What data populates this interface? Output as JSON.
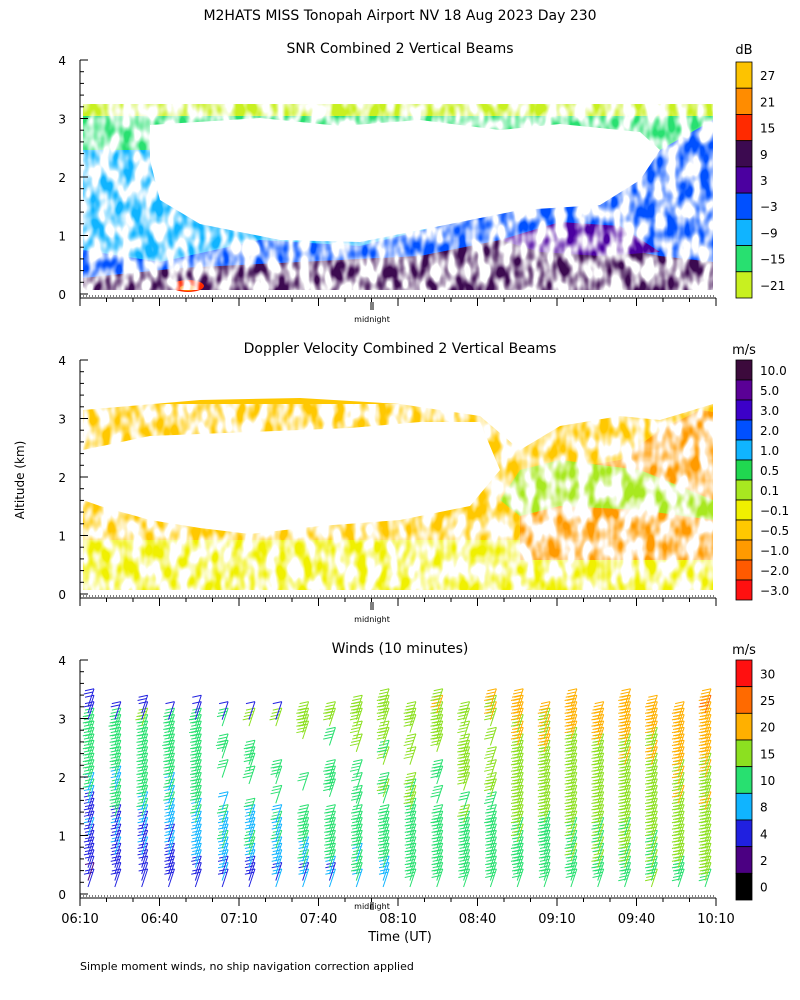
{
  "main_title": "M2HATS MISS Tonopah Airport NV  18 Aug 2023 Day 230",
  "y_axis_label": "Altitude (km)",
  "x_axis_label": "Time (UT)",
  "midnight_label": "midnight",
  "footnote": "Simple moment winds, no ship navigation correction applied",
  "chart_data": [
    {
      "type": "heatmap",
      "title": "SNR Combined 2 Vertical Beams",
      "unit": "dB",
      "ylim": [
        0,
        4
      ],
      "y_ticks": [
        "0",
        "1",
        "2",
        "3",
        "4"
      ],
      "colorbar": {
        "labels": [
          "27",
          "21",
          "15",
          "9",
          "3",
          "−3",
          "−9",
          "−15",
          "−21"
        ],
        "colors": [
          "#fdc300",
          "#ff8c00",
          "#ff2a00",
          "#3c0a50",
          "#4b00a0",
          "#0050ff",
          "#10b4ff",
          "#28e070",
          "#c8f020"
        ]
      }
    },
    {
      "type": "heatmap",
      "title": "Doppler Velocity Combined 2 Vertical Beams",
      "unit": "m/s",
      "ylim": [
        0,
        4
      ],
      "y_ticks": [
        "0",
        "1",
        "2",
        "3",
        "4"
      ],
      "colorbar": {
        "labels": [
          "10.0",
          "5.0",
          "3.0",
          "2.0",
          "1.0",
          "0.5",
          "0.1",
          "−0.1",
          "−0.5",
          "−1.0",
          "−2.0",
          "−3.0"
        ],
        "colors": [
          "#3c0a3c",
          "#5a0096",
          "#3c00c8",
          "#0050ff",
          "#10b4ff",
          "#20d850",
          "#a8e820",
          "#f0f000",
          "#ffc800",
          "#ff9a00",
          "#ff5a00",
          "#ff1010"
        ]
      }
    },
    {
      "type": "barbs",
      "title": "Winds (10 minutes)",
      "unit": "m/s",
      "ylim": [
        0,
        4
      ],
      "y_ticks": [
        "0",
        "1",
        "2",
        "3",
        "4"
      ],
      "x_ticks": [
        "06:10",
        "06:40",
        "07:10",
        "07:40",
        "08:10",
        "08:40",
        "09:10",
        "09:40",
        "10:10"
      ],
      "colorbar": {
        "labels": [
          "30",
          "25",
          "20",
          "15",
          "10",
          "8",
          "4",
          "2",
          "0"
        ],
        "colors": [
          "#ff1010",
          "#ff6a00",
          "#ffb000",
          "#8ce020",
          "#28e070",
          "#10b4ff",
          "#2020e0",
          "#4b0082",
          "#000000"
        ]
      }
    }
  ]
}
